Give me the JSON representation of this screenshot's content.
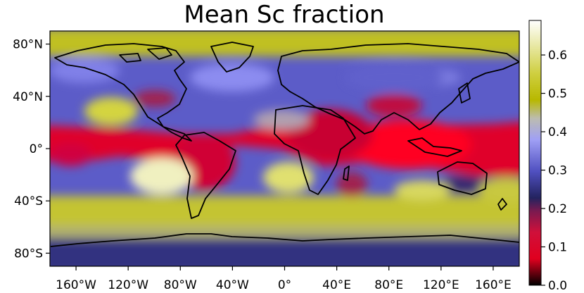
{
  "chart_data": {
    "type": "heatmap",
    "title": "Mean Sc fraction",
    "xlabel": "",
    "ylabel": "",
    "x_ticks": [
      "160°W",
      "120°W",
      "80°W",
      "40°W",
      "0°",
      "40°E",
      "80°E",
      "120°E",
      "160°E"
    ],
    "y_ticks": [
      "80°N",
      "40°N",
      "0°",
      "40°S",
      "80°S"
    ],
    "colorbar": {
      "ticks": [
        "0.0",
        "0.1",
        "0.2",
        "0.3",
        "0.4",
        "0.5",
        "0.6"
      ],
      "range": [
        0.0,
        0.69
      ],
      "colors": [
        "#000000",
        "#e0001f",
        "#e00a3a",
        "#a02052",
        "#23235f",
        "#6b6bd6",
        "#a0a0f5",
        "#bcbcb0",
        "#b8b800",
        "#ffffff"
      ]
    },
    "map_range": {
      "lon": [
        -180,
        180
      ],
      "lat": [
        -90,
        90
      ]
    },
    "grid": false
  },
  "labels": {
    "title": "Mean Sc fraction"
  }
}
